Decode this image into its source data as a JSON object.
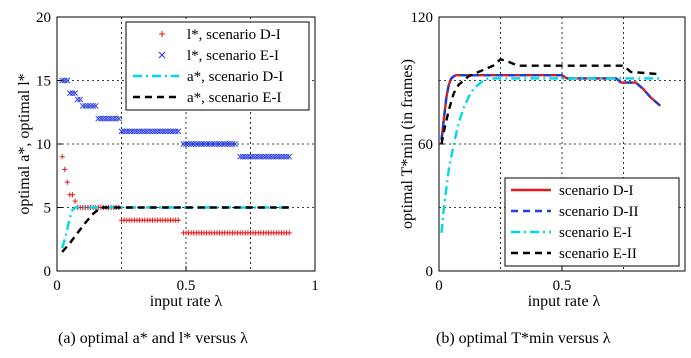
{
  "captions": [
    "(a)  optimal a* and l* versus λ",
    "(b)  optimal T*min versus λ"
  ],
  "chart_data": [
    {
      "type": "scatter",
      "xlabel": "input rate λ",
      "ylabel": "optimal a*, optimal l*",
      "xlim": [
        0,
        1
      ],
      "ylim": [
        0,
        20
      ],
      "xticks": [
        "0",
        "0.5",
        "1"
      ],
      "yticks": [
        "0",
        "5",
        "10",
        "15",
        "20"
      ],
      "grid": true,
      "legend_position": "top-right",
      "series": [
        {
          "name": "l*, scenario D-I",
          "marker": "+",
          "color": "#e31a1c",
          "points": [
            [
              0.02,
              9
            ],
            [
              0.03,
              8
            ],
            [
              0.04,
              7
            ],
            [
              0.05,
              6
            ],
            [
              0.06,
              6
            ],
            [
              0.07,
              5.5
            ],
            [
              0.08,
              5
            ],
            [
              0.09,
              5
            ],
            [
              0.1,
              5
            ],
            [
              0.11,
              5
            ],
            [
              0.12,
              5
            ],
            [
              0.13,
              5
            ],
            [
              0.14,
              5
            ],
            [
              0.15,
              5
            ],
            [
              0.16,
              5
            ],
            [
              0.17,
              5
            ],
            [
              0.18,
              5
            ],
            [
              0.19,
              5
            ],
            [
              0.2,
              5
            ],
            [
              0.21,
              5
            ],
            [
              0.22,
              5
            ],
            [
              0.23,
              5
            ],
            [
              0.24,
              5
            ],
            [
              0.25,
              4
            ],
            [
              0.26,
              4
            ],
            [
              0.27,
              4
            ],
            [
              0.28,
              4
            ],
            [
              0.29,
              4
            ],
            [
              0.3,
              4
            ],
            [
              0.31,
              4
            ],
            [
              0.32,
              4
            ],
            [
              0.33,
              4
            ],
            [
              0.34,
              4
            ],
            [
              0.35,
              4
            ],
            [
              0.36,
              4
            ],
            [
              0.37,
              4
            ],
            [
              0.38,
              4
            ],
            [
              0.39,
              4
            ],
            [
              0.4,
              4
            ],
            [
              0.41,
              4
            ],
            [
              0.42,
              4
            ],
            [
              0.43,
              4
            ],
            [
              0.44,
              4
            ],
            [
              0.45,
              4
            ],
            [
              0.46,
              4
            ],
            [
              0.47,
              4
            ],
            [
              0.49,
              3
            ],
            [
              0.5,
              3
            ],
            [
              0.51,
              3
            ],
            [
              0.52,
              3
            ],
            [
              0.53,
              3
            ],
            [
              0.54,
              3
            ],
            [
              0.55,
              3
            ],
            [
              0.56,
              3
            ],
            [
              0.57,
              3
            ],
            [
              0.58,
              3
            ],
            [
              0.59,
              3
            ],
            [
              0.6,
              3
            ],
            [
              0.61,
              3
            ],
            [
              0.62,
              3
            ],
            [
              0.63,
              3
            ],
            [
              0.64,
              3
            ],
            [
              0.65,
              3
            ],
            [
              0.66,
              3
            ],
            [
              0.67,
              3
            ],
            [
              0.68,
              3
            ],
            [
              0.69,
              3
            ],
            [
              0.7,
              3
            ],
            [
              0.71,
              3
            ],
            [
              0.72,
              3
            ],
            [
              0.73,
              3
            ],
            [
              0.74,
              3
            ],
            [
              0.75,
              3
            ],
            [
              0.76,
              3
            ],
            [
              0.77,
              3
            ],
            [
              0.78,
              3
            ],
            [
              0.79,
              3
            ],
            [
              0.8,
              3
            ],
            [
              0.81,
              3
            ],
            [
              0.82,
              3
            ],
            [
              0.83,
              3
            ],
            [
              0.84,
              3
            ],
            [
              0.85,
              3
            ],
            [
              0.86,
              3
            ],
            [
              0.87,
              3
            ],
            [
              0.88,
              3
            ],
            [
              0.89,
              3
            ],
            [
              0.9,
              3
            ]
          ]
        },
        {
          "name": "l*, scenario E-I",
          "marker": "x",
          "color": "#2c3fe0",
          "points": [
            [
              0.02,
              15
            ],
            [
              0.03,
              15
            ],
            [
              0.04,
              15
            ],
            [
              0.05,
              14
            ],
            [
              0.06,
              14
            ],
            [
              0.07,
              14
            ],
            [
              0.08,
              13.5
            ],
            [
              0.09,
              13.5
            ],
            [
              0.1,
              13
            ],
            [
              0.11,
              13
            ],
            [
              0.12,
              13
            ],
            [
              0.13,
              13
            ],
            [
              0.14,
              13
            ],
            [
              0.15,
              13
            ],
            [
              0.16,
              12
            ],
            [
              0.17,
              12
            ],
            [
              0.18,
              12
            ],
            [
              0.19,
              12
            ],
            [
              0.2,
              12
            ],
            [
              0.21,
              12
            ],
            [
              0.22,
              12
            ],
            [
              0.23,
              12
            ],
            [
              0.24,
              12
            ],
            [
              0.25,
              11
            ],
            [
              0.26,
              11
            ],
            [
              0.27,
              11
            ],
            [
              0.28,
              11
            ],
            [
              0.29,
              11
            ],
            [
              0.3,
              11
            ],
            [
              0.31,
              11
            ],
            [
              0.32,
              11
            ],
            [
              0.33,
              11
            ],
            [
              0.34,
              11
            ],
            [
              0.35,
              11
            ],
            [
              0.36,
              11
            ],
            [
              0.37,
              11
            ],
            [
              0.38,
              11
            ],
            [
              0.39,
              11
            ],
            [
              0.4,
              11
            ],
            [
              0.41,
              11
            ],
            [
              0.42,
              11
            ],
            [
              0.43,
              11
            ],
            [
              0.44,
              11
            ],
            [
              0.45,
              11
            ],
            [
              0.46,
              11
            ],
            [
              0.47,
              11
            ],
            [
              0.49,
              10
            ],
            [
              0.5,
              10
            ],
            [
              0.51,
              10
            ],
            [
              0.52,
              10
            ],
            [
              0.53,
              10
            ],
            [
              0.54,
              10
            ],
            [
              0.55,
              10
            ],
            [
              0.56,
              10
            ],
            [
              0.57,
              10
            ],
            [
              0.58,
              10
            ],
            [
              0.59,
              10
            ],
            [
              0.6,
              10
            ],
            [
              0.61,
              10
            ],
            [
              0.62,
              10
            ],
            [
              0.63,
              10
            ],
            [
              0.64,
              10
            ],
            [
              0.65,
              10
            ],
            [
              0.66,
              10
            ],
            [
              0.67,
              10
            ],
            [
              0.68,
              10
            ],
            [
              0.69,
              10
            ],
            [
              0.71,
              9
            ],
            [
              0.72,
              9
            ],
            [
              0.73,
              9
            ],
            [
              0.74,
              9
            ],
            [
              0.75,
              9
            ],
            [
              0.76,
              9
            ],
            [
              0.77,
              9
            ],
            [
              0.78,
              9
            ],
            [
              0.79,
              9
            ],
            [
              0.8,
              9
            ],
            [
              0.81,
              9
            ],
            [
              0.82,
              9
            ],
            [
              0.83,
              9
            ],
            [
              0.84,
              9
            ],
            [
              0.85,
              9
            ],
            [
              0.86,
              9
            ],
            [
              0.87,
              9
            ],
            [
              0.88,
              9
            ],
            [
              0.89,
              9
            ],
            [
              0.9,
              9
            ]
          ]
        },
        {
          "name": "a*, scenario D-I",
          "line": "dash-dot",
          "color": "#00d8e8",
          "points": [
            [
              0.02,
              1.8
            ],
            [
              0.03,
              2.5
            ],
            [
              0.04,
              3.3
            ],
            [
              0.05,
              4.2
            ],
            [
              0.06,
              4.8
            ],
            [
              0.07,
              5
            ],
            [
              0.9,
              5
            ]
          ]
        },
        {
          "name": "a*, scenario E-I",
          "line": "dash",
          "color": "#000000",
          "points": [
            [
              0.02,
              1.5
            ],
            [
              0.05,
              2.2
            ],
            [
              0.08,
              3
            ],
            [
              0.11,
              3.8
            ],
            [
              0.14,
              4.5
            ],
            [
              0.17,
              5
            ],
            [
              0.9,
              5
            ]
          ]
        }
      ]
    },
    {
      "type": "line",
      "xlabel": "input rate λ",
      "ylabel": "optimal T*min (in frames)",
      "xlim": [
        0,
        1
      ],
      "ylim": [
        0,
        120
      ],
      "xticks": [
        "0",
        "0.5"
      ],
      "yticks": [
        "0",
        "60",
        "120"
      ],
      "grid": true,
      "legend_position": "bottom-right",
      "series": [
        {
          "name": "scenario D-I",
          "line": "solid",
          "color": "#e31a1c",
          "points": [
            [
              0.01,
              62
            ],
            [
              0.02,
              72
            ],
            [
              0.03,
              82
            ],
            [
              0.04,
              88
            ],
            [
              0.05,
              91
            ],
            [
              0.06,
              92
            ],
            [
              0.07,
              92.5
            ],
            [
              0.5,
              92.5
            ],
            [
              0.52,
              91
            ],
            [
              0.72,
              91
            ],
            [
              0.74,
              89
            ],
            [
              0.8,
              89
            ],
            [
              0.83,
              86
            ],
            [
              0.86,
              82
            ],
            [
              0.9,
              78
            ]
          ]
        },
        {
          "name": "scenario D-II",
          "line": "dash",
          "color": "#1f3fd0",
          "points": [
            [
              0.01,
              62
            ],
            [
              0.02,
              72
            ],
            [
              0.03,
              82
            ],
            [
              0.04,
              88
            ],
            [
              0.05,
              91
            ],
            [
              0.06,
              92
            ],
            [
              0.07,
              92.5
            ],
            [
              0.5,
              92.5
            ],
            [
              0.52,
              91
            ],
            [
              0.72,
              91
            ],
            [
              0.74,
              89
            ],
            [
              0.8,
              89
            ],
            [
              0.83,
              86
            ],
            [
              0.86,
              82
            ],
            [
              0.9,
              78
            ]
          ]
        },
        {
          "name": "scenario E-I",
          "line": "dash-dot",
          "color": "#00d8e8",
          "points": [
            [
              0.01,
              18
            ],
            [
              0.02,
              30
            ],
            [
              0.04,
              48
            ],
            [
              0.06,
              60
            ],
            [
              0.08,
              70
            ],
            [
              0.1,
              77
            ],
            [
              0.12,
              82
            ],
            [
              0.14,
              86
            ],
            [
              0.16,
              88
            ],
            [
              0.18,
              90
            ],
            [
              0.2,
              91
            ],
            [
              0.9,
              91
            ]
          ]
        },
        {
          "name": "scenario E-II",
          "line": "dash",
          "color": "#000000",
          "points": [
            [
              0.01,
              60
            ],
            [
              0.02,
              66
            ],
            [
              0.04,
              76
            ],
            [
              0.06,
              84
            ],
            [
              0.08,
              88
            ],
            [
              0.1,
              90
            ],
            [
              0.12,
              92
            ],
            [
              0.18,
              95
            ],
            [
              0.22,
              97
            ],
            [
              0.25,
              100
            ],
            [
              0.28,
              99
            ],
            [
              0.32,
              97
            ],
            [
              0.75,
              97
            ],
            [
              0.78,
              94
            ],
            [
              0.9,
              93
            ]
          ]
        }
      ]
    }
  ]
}
